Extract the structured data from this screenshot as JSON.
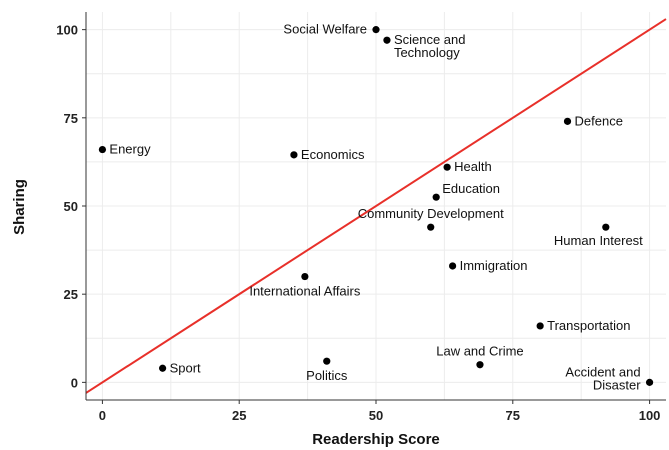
{
  "chart_data": {
    "type": "scatter",
    "xlabel": "Readership Score",
    "ylabel": "Sharing",
    "xlim": [
      -3,
      103
    ],
    "ylim": [
      -5,
      105
    ],
    "xticks": [
      0,
      25,
      50,
      75,
      100
    ],
    "yticks": [
      0,
      25,
      50,
      75,
      100
    ],
    "grid": true,
    "reference_line": {
      "from": [
        -3,
        -3
      ],
      "to": [
        103,
        103
      ],
      "color": "#e8302a"
    },
    "point_color": "#000000",
    "points": [
      {
        "label": "Social Welfare",
        "x": 50,
        "y": 100,
        "label_side": "left"
      },
      {
        "label": "Science and\nTechnology",
        "x": 52,
        "y": 97,
        "label_side": "right"
      },
      {
        "label": "Defence",
        "x": 85,
        "y": 74,
        "label_side": "right"
      },
      {
        "label": "Energy",
        "x": 0,
        "y": 66,
        "label_side": "right"
      },
      {
        "label": "Economics",
        "x": 35,
        "y": 64.5,
        "label_side": "right"
      },
      {
        "label": "Health",
        "x": 63,
        "y": 61,
        "label_side": "right"
      },
      {
        "label": "Education",
        "x": 61,
        "y": 52.5,
        "label_side": "right-up"
      },
      {
        "label": "Community Development",
        "x": 60,
        "y": 44,
        "label_side": "above"
      },
      {
        "label": "Human Interest",
        "x": 92,
        "y": 44,
        "label_side": "below-left"
      },
      {
        "label": "Immigration",
        "x": 64,
        "y": 33,
        "label_side": "right"
      },
      {
        "label": "International Affairs",
        "x": 37,
        "y": 30,
        "label_side": "below"
      },
      {
        "label": "Transportation",
        "x": 80,
        "y": 16,
        "label_side": "right"
      },
      {
        "label": "Law and Crime",
        "x": 69,
        "y": 5,
        "label_side": "above"
      },
      {
        "label": "Sport",
        "x": 11,
        "y": 4,
        "label_side": "right"
      },
      {
        "label": "Politics",
        "x": 41,
        "y": 6,
        "label_side": "below"
      },
      {
        "label": "Accident and\nDisaster",
        "x": 100,
        "y": 0,
        "label_side": "left"
      }
    ]
  }
}
